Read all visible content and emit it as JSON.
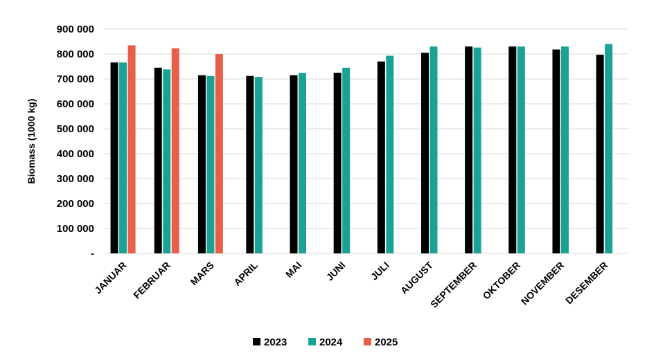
{
  "chart_data": {
    "type": "bar",
    "title": "",
    "xlabel": "",
    "ylabel": "Biomass  (1000 kg)",
    "ylim": [
      0,
      900000
    ],
    "yticks": [
      0,
      100000,
      200000,
      300000,
      400000,
      500000,
      600000,
      700000,
      800000,
      900000
    ],
    "ytick_labels": [
      "-",
      "100 000",
      "200 000",
      "300 000",
      "400 000",
      "500 000",
      "600 000",
      "700 000",
      "800 000",
      "900 000"
    ],
    "grid": true,
    "legend_position": "bottom",
    "categories": [
      "JANUAR",
      "FEBRUAR",
      "MARS",
      "APRIL",
      "MAI",
      "JUNI",
      "JULI",
      "AUGUST",
      "SEPTEMBER",
      "OKTOBER",
      "NOVEMBER",
      "DESEMBER"
    ],
    "series": [
      {
        "name": "2023",
        "color": "#000000",
        "values": [
          766000,
          745000,
          715000,
          712000,
          715000,
          725000,
          770000,
          805000,
          830000,
          830000,
          818000,
          797000
        ]
      },
      {
        "name": "2024",
        "color": "#1aa394",
        "values": [
          766000,
          738000,
          712000,
          708000,
          724000,
          745000,
          793000,
          830000,
          826000,
          830000,
          830000,
          840000
        ]
      },
      {
        "name": "2025",
        "color": "#e8604a",
        "values": [
          835000,
          823000,
          800000,
          null,
          null,
          null,
          null,
          null,
          null,
          null,
          null,
          null
        ]
      }
    ]
  }
}
